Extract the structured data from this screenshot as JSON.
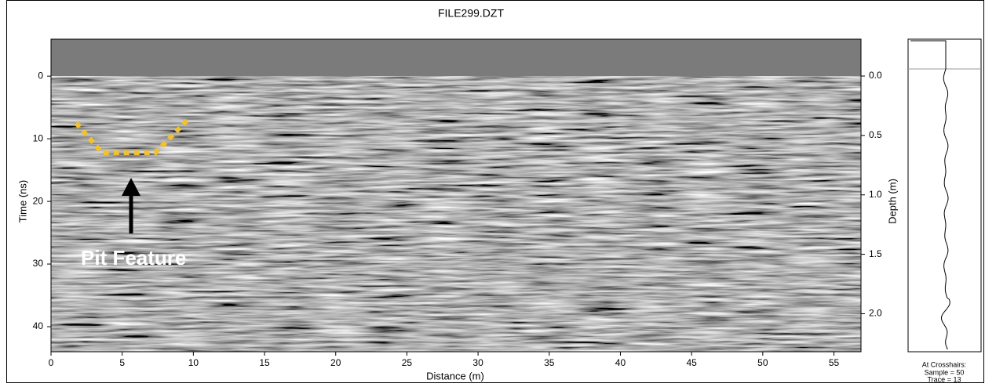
{
  "chart_data": {
    "type": "radargram",
    "title": "FILE299.DZT",
    "x_label": "Distance (m)",
    "y_label": "Time (ns)",
    "y2_label": "Depth (m)",
    "xlim": [
      0,
      56.9
    ],
    "xticks": [
      0,
      5,
      10,
      15,
      20,
      25,
      30,
      35,
      40,
      45,
      50,
      55
    ],
    "ylim": [
      44,
      -5.9
    ],
    "yticks": [
      0,
      10,
      20,
      30,
      40
    ],
    "y2lim": [
      2.32,
      -0.31
    ],
    "y2ticks": [
      {
        "value": 0,
        "label": "0.0"
      },
      {
        "value": 0.5,
        "label": "0.5"
      },
      {
        "value": 1,
        "label": "1.0"
      },
      {
        "value": 1.5,
        "label": "1.5"
      },
      {
        "value": 2,
        "label": "2.0"
      }
    ],
    "annotation": "Pit Feature",
    "crosshairs": {
      "title": "At Crosshairs:",
      "sample": "Sample = 50",
      "trace": "Trace = 13"
    }
  }
}
